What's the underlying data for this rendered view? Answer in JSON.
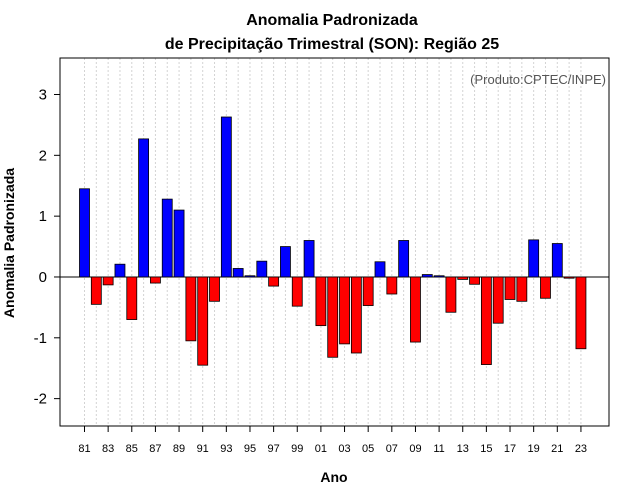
{
  "chart_data": {
    "type": "bar",
    "title_line1": "Anomalia Padronizada",
    "title_line2": "de Precipitação Trimestral (SON): Região 25",
    "xlabel": "Ano",
    "ylabel": "Anomalia Padronizada",
    "credit": "(Produto:CPTEC/INPE)",
    "ylim": [
      -2.45,
      3.6
    ],
    "yticks": [
      -2,
      -1,
      0,
      1,
      2,
      3
    ],
    "ytick_labels": [
      "-2",
      "-1",
      "0",
      "1",
      "2",
      "3"
    ],
    "xtick_labels": [
      "81",
      "83",
      "85",
      "87",
      "89",
      "91",
      "93",
      "95",
      "97",
      "99",
      "01",
      "03",
      "05",
      "07",
      "09",
      "11",
      "13",
      "15",
      "17",
      "19",
      "21",
      "23"
    ],
    "categories": [
      "81",
      "82",
      "83",
      "84",
      "85",
      "86",
      "87",
      "88",
      "89",
      "90",
      "91",
      "92",
      "93",
      "94",
      "95",
      "96",
      "97",
      "98",
      "99",
      "00",
      "01",
      "02",
      "03",
      "04",
      "05",
      "06",
      "07",
      "08",
      "09",
      "10",
      "11",
      "12",
      "13",
      "14",
      "15",
      "16",
      "17",
      "18",
      "19",
      "20",
      "21",
      "22",
      "23"
    ],
    "values": [
      1.45,
      -0.45,
      -0.13,
      0.21,
      -0.7,
      2.27,
      -0.1,
      1.28,
      1.1,
      -1.05,
      -1.45,
      -0.4,
      2.63,
      0.14,
      0.02,
      0.26,
      -0.15,
      0.5,
      -0.48,
      0.6,
      -0.8,
      -1.32,
      -1.1,
      -1.25,
      -0.47,
      0.25,
      -0.28,
      0.6,
      -1.07,
      0.04,
      0.02,
      -0.58,
      -0.04,
      -0.12,
      -1.44,
      -0.76,
      -0.37,
      -0.4,
      0.61,
      -0.35,
      0.55,
      -0.02,
      -1.18
    ],
    "colors": {
      "positive": "#0000ff",
      "negative": "#ff0000",
      "outline": "#000000",
      "grid": "#d3d3d3"
    }
  }
}
